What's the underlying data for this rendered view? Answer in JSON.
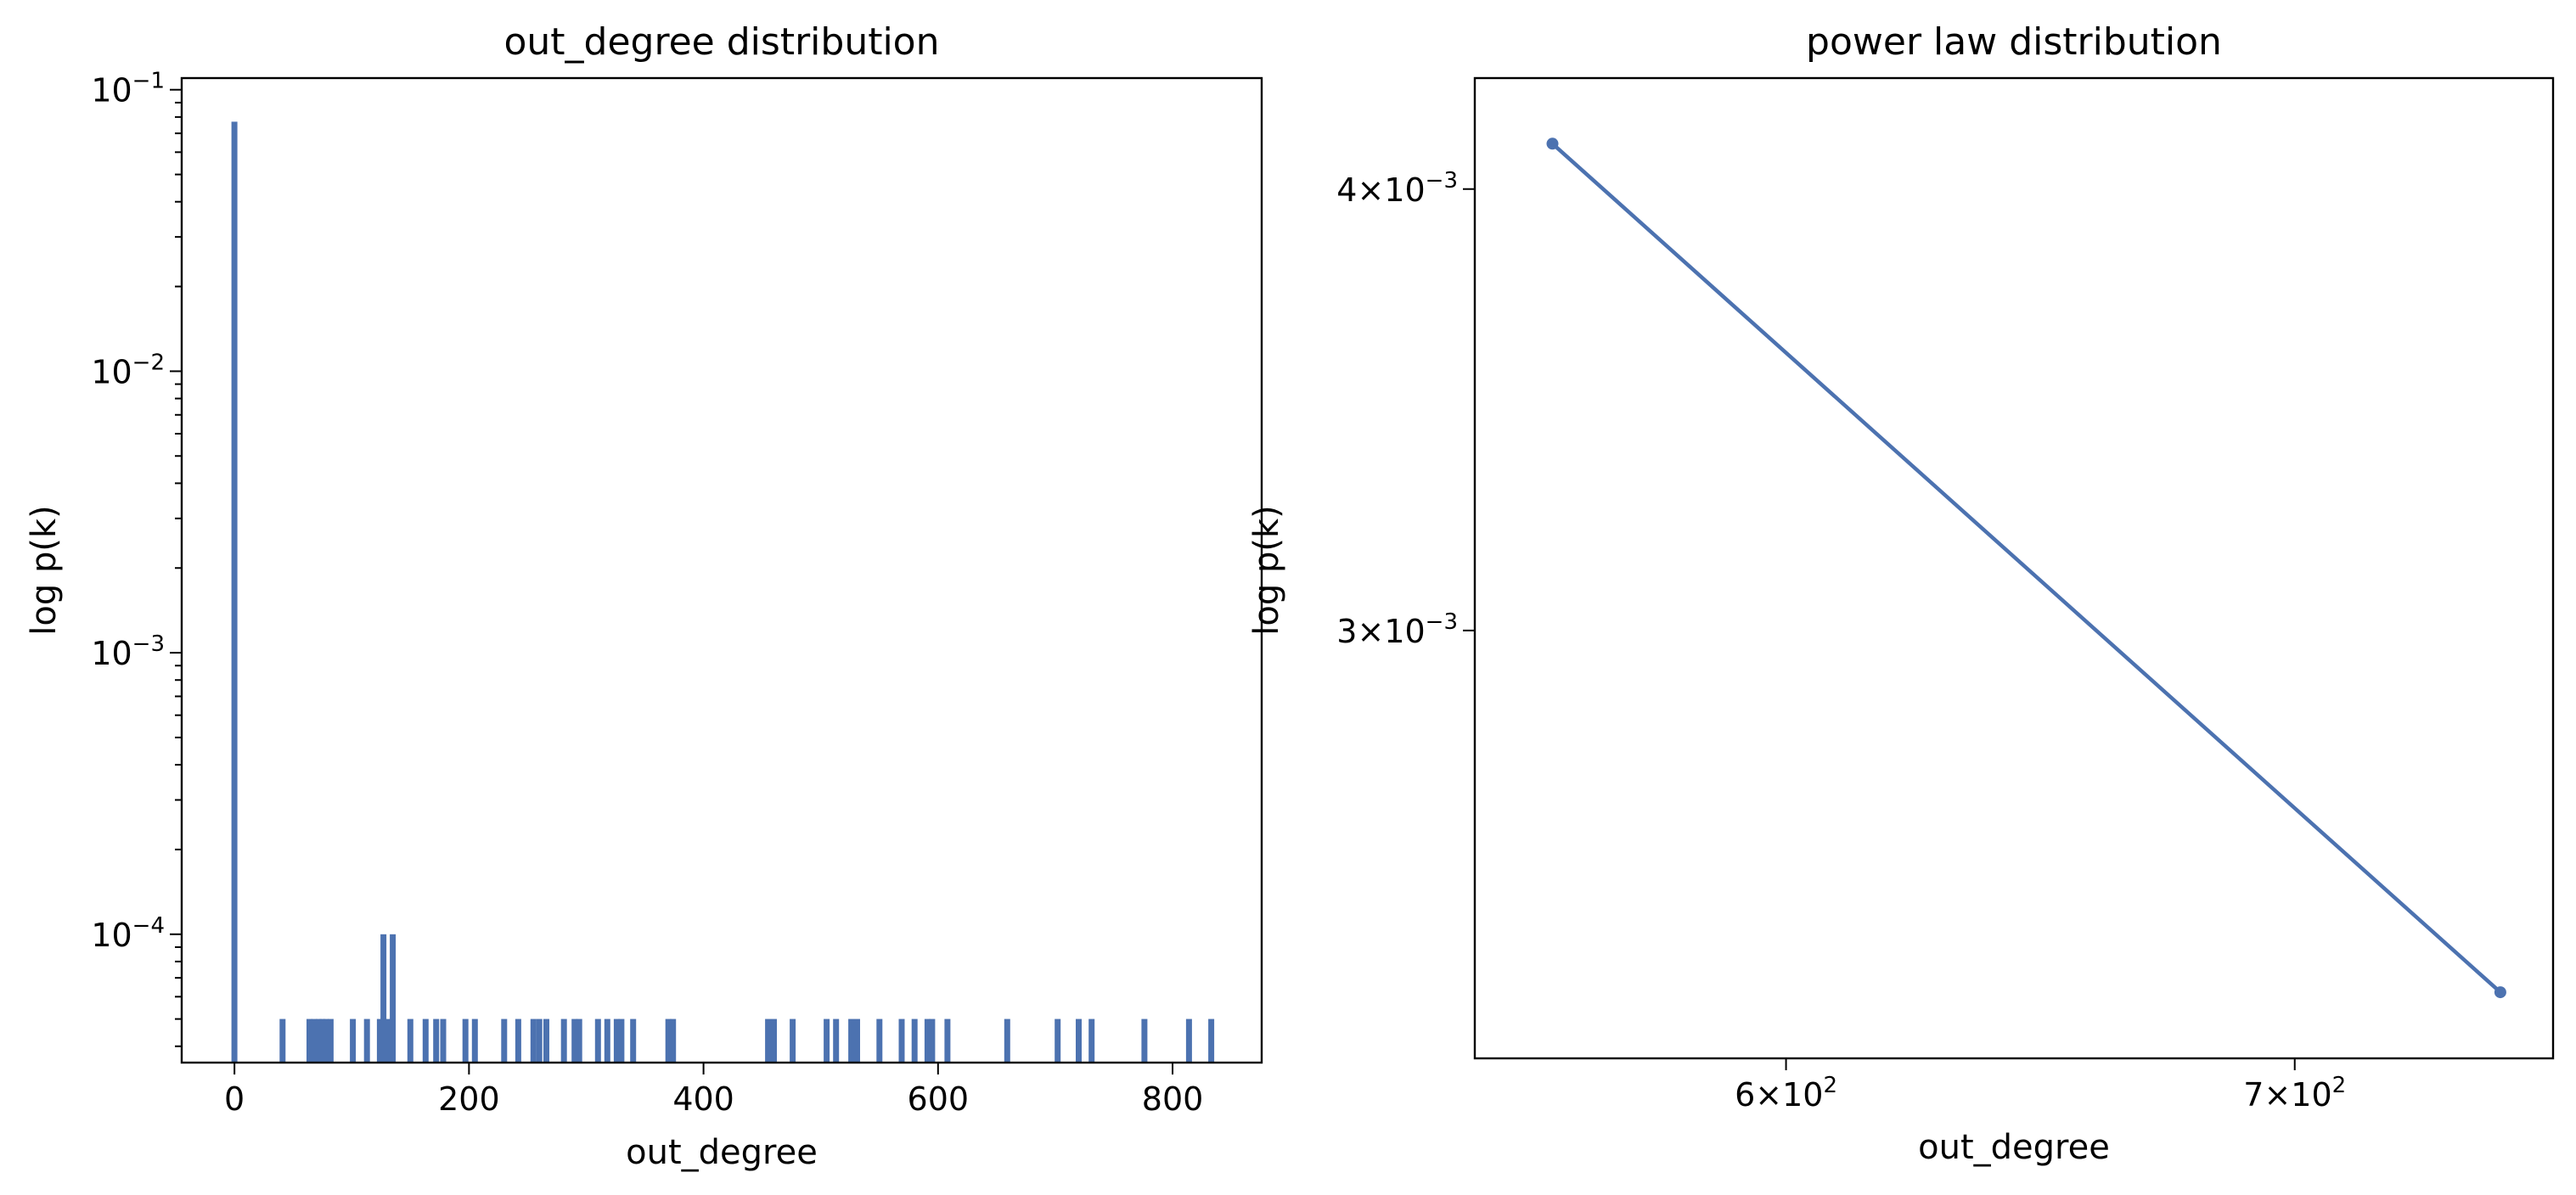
{
  "style": {
    "series_color": "#4c72b0"
  },
  "chart_data": [
    {
      "type": "bar",
      "title": "out_degree distribution",
      "xlabel": "out_degree",
      "ylabel": "log p(k)",
      "yscale": "log",
      "xlim": [
        -45,
        876
      ],
      "ylim": [
        3.5e-05,
        0.11
      ],
      "xticks": [
        0,
        200,
        400,
        600,
        800
      ],
      "yticks": [
        {
          "mant": "10",
          "exp": "−1",
          "value": 0.1
        },
        {
          "mant": "10",
          "exp": "−2",
          "value": 0.01
        },
        {
          "mant": "10",
          "exp": "−3",
          "value": 0.001
        },
        {
          "mant": "10",
          "exp": "−4",
          "value": 0.0001
        }
      ],
      "grid": false,
      "bars": [
        {
          "x": 0,
          "y": 0.077
        },
        {
          "x": 41,
          "y": 5e-05
        },
        {
          "x": 64,
          "y": 5e-05
        },
        {
          "x": 68,
          "y": 5e-05
        },
        {
          "x": 72,
          "y": 5e-05
        },
        {
          "x": 75,
          "y": 5e-05
        },
        {
          "x": 78,
          "y": 5e-05
        },
        {
          "x": 82,
          "y": 5e-05
        },
        {
          "x": 101,
          "y": 5e-05
        },
        {
          "x": 113,
          "y": 5e-05
        },
        {
          "x": 124,
          "y": 5e-05
        },
        {
          "x": 127,
          "y": 0.0001
        },
        {
          "x": 131,
          "y": 5e-05
        },
        {
          "x": 135,
          "y": 0.0001
        },
        {
          "x": 150,
          "y": 5e-05
        },
        {
          "x": 163,
          "y": 5e-05
        },
        {
          "x": 172,
          "y": 5e-05
        },
        {
          "x": 178,
          "y": 5e-05
        },
        {
          "x": 197,
          "y": 5e-05
        },
        {
          "x": 205,
          "y": 5e-05
        },
        {
          "x": 230,
          "y": 5e-05
        },
        {
          "x": 242,
          "y": 5e-05
        },
        {
          "x": 255,
          "y": 5e-05
        },
        {
          "x": 260,
          "y": 5e-05
        },
        {
          "x": 266,
          "y": 5e-05
        },
        {
          "x": 281,
          "y": 5e-05
        },
        {
          "x": 290,
          "y": 5e-05
        },
        {
          "x": 294,
          "y": 5e-05
        },
        {
          "x": 310,
          "y": 5e-05
        },
        {
          "x": 318,
          "y": 5e-05
        },
        {
          "x": 326,
          "y": 5e-05
        },
        {
          "x": 330,
          "y": 5e-05
        },
        {
          "x": 340,
          "y": 5e-05
        },
        {
          "x": 370,
          "y": 5e-05
        },
        {
          "x": 374,
          "y": 5e-05
        },
        {
          "x": 455,
          "y": 5e-05
        },
        {
          "x": 460,
          "y": 5e-05
        },
        {
          "x": 476,
          "y": 5e-05
        },
        {
          "x": 505,
          "y": 5e-05
        },
        {
          "x": 513,
          "y": 5e-05
        },
        {
          "x": 526,
          "y": 5e-05
        },
        {
          "x": 531,
          "y": 5e-05
        },
        {
          "x": 550,
          "y": 5e-05
        },
        {
          "x": 569,
          "y": 5e-05
        },
        {
          "x": 580,
          "y": 5e-05
        },
        {
          "x": 591,
          "y": 5e-05
        },
        {
          "x": 595,
          "y": 5e-05
        },
        {
          "x": 608,
          "y": 5e-05
        },
        {
          "x": 659,
          "y": 5e-05
        },
        {
          "x": 702,
          "y": 5e-05
        },
        {
          "x": 720,
          "y": 5e-05
        },
        {
          "x": 731,
          "y": 5e-05
        },
        {
          "x": 776,
          "y": 5e-05
        },
        {
          "x": 814,
          "y": 5e-05
        },
        {
          "x": 833,
          "y": 5e-05
        }
      ]
    },
    {
      "type": "line",
      "title": "power law distribution",
      "xlabel": "out_degree",
      "ylabel": "log p(k)",
      "xscale": "log",
      "yscale": "log",
      "xlim": [
        546,
        757
      ],
      "ylim": [
        0.00227,
        0.0043
      ],
      "xticks": [
        {
          "mant": "6",
          "exp": "2",
          "value": 600
        },
        {
          "mant": "7",
          "exp": "2",
          "value": 700
        }
      ],
      "yticks": [
        {
          "mant": "4",
          "exp": "−3",
          "value": 0.004
        },
        {
          "mant": "3",
          "exp": "−3",
          "value": 0.003
        }
      ],
      "grid": false,
      "series": [
        {
          "points": [
            {
              "x": 559,
              "y": 0.00412
            },
            {
              "x": 745,
              "y": 0.00237
            }
          ]
        }
      ]
    }
  ]
}
